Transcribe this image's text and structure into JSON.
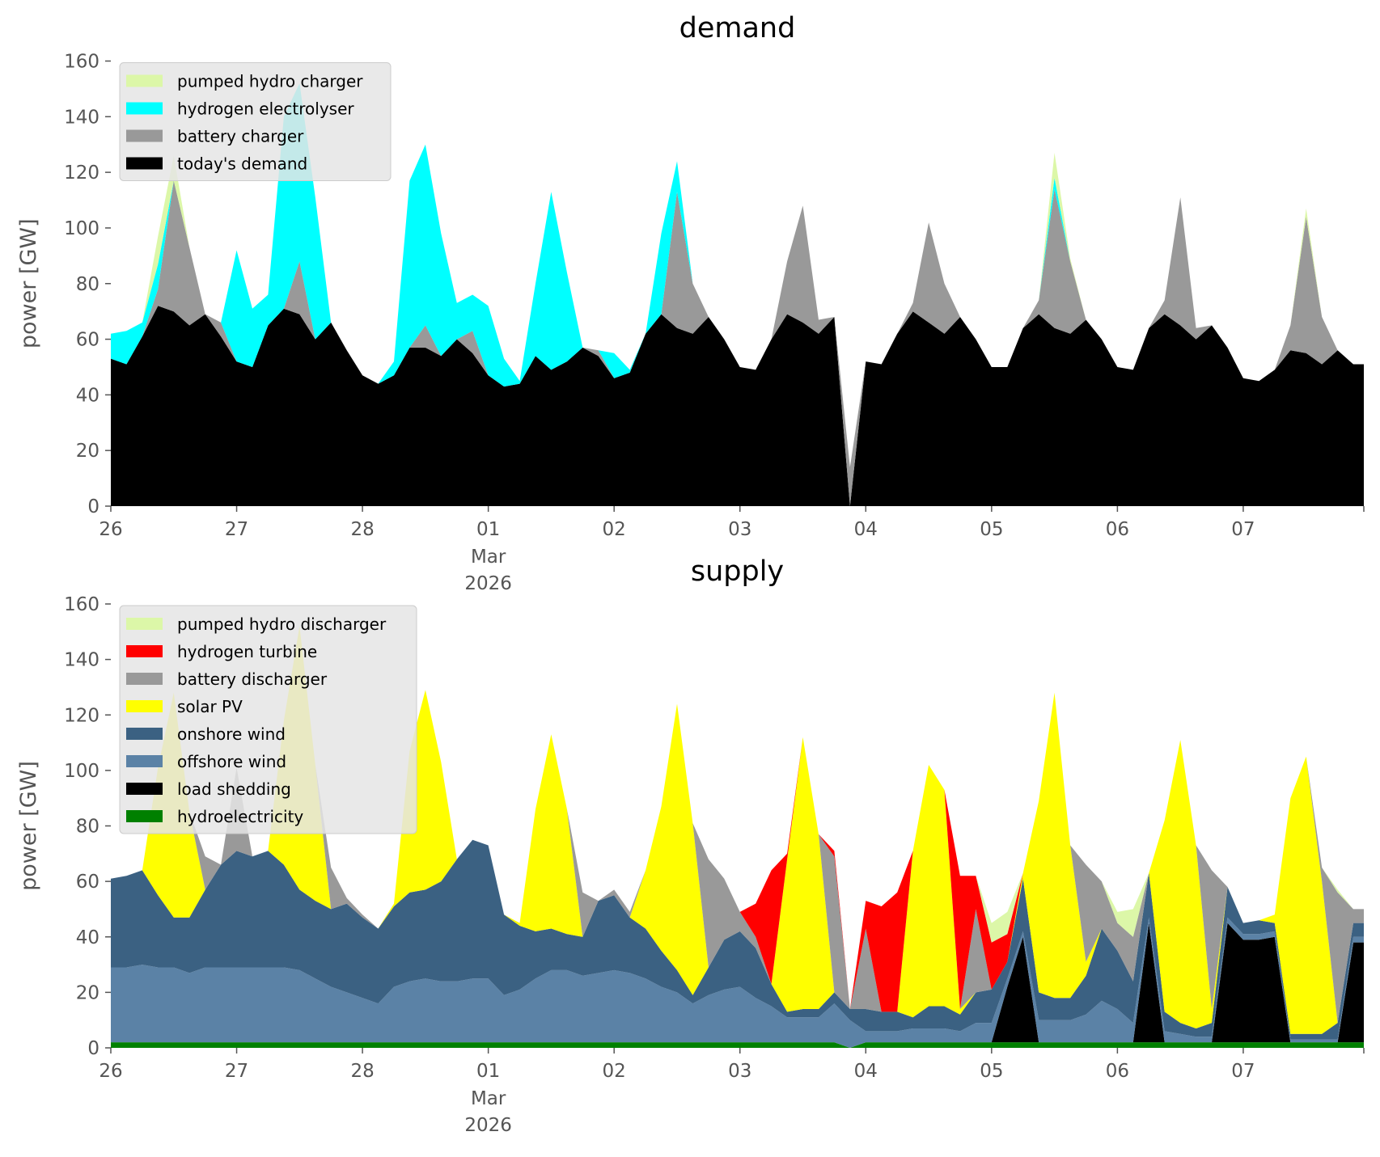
{
  "chart_data": [
    {
      "type": "area",
      "stacked": true,
      "title": "demand",
      "ylabel": "power [GW]",
      "xlabel": "",
      "ylim": [
        0,
        160
      ],
      "yticks": [
        "0",
        "20",
        "40",
        "60",
        "80",
        "100",
        "120",
        "140",
        "160"
      ],
      "x_start": "2026-02-26 00:00",
      "x_step_hours": 3,
      "x_range_hours": [
        0,
        239
      ],
      "xticks": [
        {
          "label": "26"
        },
        {
          "label": "27"
        },
        {
          "label": "28"
        },
        {
          "label": "01",
          "sub": [
            "Mar",
            "2026"
          ]
        },
        {
          "label": "02"
        },
        {
          "label": "03"
        },
        {
          "label": "04"
        },
        {
          "label": "05"
        },
        {
          "label": "06"
        },
        {
          "label": "07"
        }
      ],
      "legend_position": "upper-left",
      "series": [
        {
          "name": "today's demand",
          "color": "#000000",
          "values": [
            53,
            51,
            61,
            72,
            70,
            65,
            69,
            61,
            52,
            50,
            65,
            71,
            69,
            60,
            66,
            56,
            47,
            44,
            47,
            57,
            57,
            54,
            60,
            55,
            47,
            43,
            44,
            54,
            49,
            52,
            57,
            54,
            46,
            48,
            62,
            69,
            64,
            62,
            68,
            60,
            50,
            49,
            60,
            69,
            66,
            62,
            68,
            0,
            52,
            51,
            62,
            70,
            66,
            62,
            68,
            60,
            50,
            50,
            64,
            69,
            64,
            62,
            67,
            60,
            50,
            49,
            64,
            69,
            65,
            60,
            65,
            57,
            46,
            45,
            49,
            56,
            55,
            51,
            56,
            51
          ]
        },
        {
          "name": "battery charger",
          "color": "#999999",
          "values": [
            0,
            0,
            0,
            6,
            47,
            28,
            0,
            5,
            0,
            0,
            0,
            0,
            19,
            0,
            0,
            0,
            0,
            0,
            0,
            0,
            8,
            0,
            0,
            8,
            0,
            0,
            0,
            0,
            0,
            0,
            0,
            2,
            0,
            0,
            0,
            0,
            49,
            18,
            0,
            0,
            0,
            0,
            0,
            19,
            42,
            5,
            0,
            14,
            0,
            0,
            0,
            3,
            36,
            18,
            0,
            0,
            0,
            0,
            0,
            5,
            50,
            26,
            0,
            0,
            0,
            0,
            0,
            5,
            46,
            4,
            0,
            0,
            0,
            0,
            0,
            9,
            49,
            17,
            0,
            0
          ]
        },
        {
          "name": "hydrogen electrolyser",
          "color": "#00ffff",
          "values": [
            9,
            12,
            5,
            9,
            0,
            0,
            0,
            0,
            40,
            21,
            11,
            69,
            64,
            51,
            0,
            0,
            0,
            0,
            5,
            60,
            65,
            44,
            13,
            13,
            25,
            10,
            1,
            26,
            64,
            32,
            0,
            0,
            9,
            1,
            0,
            29,
            11,
            0,
            0,
            0,
            0,
            0,
            0,
            0,
            0,
            0,
            0,
            0,
            0,
            0,
            0,
            0,
            0,
            0,
            0,
            0,
            0,
            0,
            0,
            0,
            4,
            0,
            0,
            0,
            0,
            0,
            0,
            0,
            0,
            0,
            0,
            0,
            0,
            0,
            0,
            0,
            0,
            0,
            0,
            0
          ]
        },
        {
          "name": "pumped hydro charger",
          "color": "#dcf7a8",
          "values": [
            0,
            0,
            0,
            10,
            9,
            0,
            0,
            0,
            0,
            0,
            0,
            0,
            0,
            0,
            0,
            0,
            0,
            0,
            0,
            0,
            0,
            0,
            0,
            0,
            0,
            0,
            0,
            0,
            0,
            0,
            0,
            0,
            0,
            0,
            0,
            0,
            0,
            0,
            0,
            0,
            0,
            0,
            0,
            0,
            0,
            0,
            0,
            0,
            0,
            0,
            0,
            0,
            0,
            0,
            0,
            0,
            0,
            0,
            0,
            0,
            9,
            1,
            0,
            0,
            0,
            0,
            0,
            0,
            0,
            0,
            0,
            0,
            0,
            0,
            0,
            0,
            3,
            0,
            0,
            0
          ]
        }
      ]
    },
    {
      "type": "area",
      "stacked": true,
      "title": "supply",
      "ylabel": "power [GW]",
      "xlabel": "",
      "ylim": [
        0,
        160
      ],
      "yticks": [
        "0",
        "20",
        "40",
        "60",
        "80",
        "100",
        "120",
        "140",
        "160"
      ],
      "x_start": "2026-02-26 00:00",
      "x_step_hours": 3,
      "x_range_hours": [
        0,
        239
      ],
      "xticks": [
        {
          "label": "26"
        },
        {
          "label": "27"
        },
        {
          "label": "28"
        },
        {
          "label": "01",
          "sub": [
            "Mar",
            "2026"
          ]
        },
        {
          "label": "02"
        },
        {
          "label": "03"
        },
        {
          "label": "04"
        },
        {
          "label": "05"
        },
        {
          "label": "06"
        },
        {
          "label": "07"
        }
      ],
      "legend_position": "upper-left",
      "series": [
        {
          "name": "hydroelectricity",
          "color": "#008000",
          "values": [
            2,
            2,
            2,
            2,
            2,
            2,
            2,
            2,
            2,
            2,
            2,
            2,
            2,
            2,
            2,
            2,
            2,
            2,
            2,
            2,
            2,
            2,
            2,
            2,
            2,
            2,
            2,
            2,
            2,
            2,
            2,
            2,
            2,
            2,
            2,
            2,
            2,
            2,
            2,
            2,
            2,
            2,
            2,
            2,
            2,
            2,
            2,
            0,
            2,
            2,
            2,
            2,
            2,
            2,
            2,
            2,
            2,
            2,
            2,
            2,
            2,
            2,
            2,
            2,
            2,
            2,
            2,
            2,
            2,
            2,
            2,
            2,
            2,
            2,
            2,
            2,
            2,
            2,
            2,
            2
          ]
        },
        {
          "name": "load shedding",
          "color": "#000000",
          "values": [
            0,
            0,
            0,
            0,
            0,
            0,
            0,
            0,
            0,
            0,
            0,
            0,
            0,
            0,
            0,
            0,
            0,
            0,
            0,
            0,
            0,
            0,
            0,
            0,
            0,
            0,
            0,
            0,
            0,
            0,
            0,
            0,
            0,
            0,
            0,
            0,
            0,
            0,
            0,
            0,
            0,
            0,
            0,
            0,
            0,
            0,
            0,
            0,
            0,
            0,
            0,
            0,
            0,
            0,
            0,
            0,
            0,
            20,
            38,
            0,
            0,
            0,
            0,
            0,
            0,
            0,
            43,
            0,
            0,
            0,
            0,
            43,
            37,
            37,
            38,
            0,
            0,
            0,
            0,
            36
          ]
        },
        {
          "name": "offshore wind",
          "color": "#5b82a6",
          "values": [
            27,
            27,
            28,
            27,
            27,
            25,
            27,
            27,
            27,
            27,
            27,
            27,
            26,
            23,
            20,
            18,
            16,
            14,
            20,
            22,
            23,
            22,
            22,
            23,
            23,
            17,
            19,
            23,
            26,
            26,
            24,
            25,
            26,
            25,
            23,
            20,
            18,
            14,
            17,
            19,
            20,
            16,
            13,
            9,
            9,
            9,
            14,
            10,
            4,
            4,
            4,
            5,
            5,
            5,
            4,
            7,
            7,
            3,
            2,
            8,
            8,
            8,
            10,
            15,
            12,
            7,
            2,
            4,
            3,
            2,
            2,
            2,
            2,
            2,
            2,
            1,
            1,
            1,
            1,
            2
          ]
        },
        {
          "name": "onshore wind",
          "color": "#3b6182",
          "values": [
            32,
            33,
            34,
            26,
            18,
            20,
            28,
            37,
            42,
            40,
            42,
            37,
            29,
            28,
            28,
            32,
            29,
            27,
            29,
            32,
            32,
            36,
            44,
            50,
            48,
            29,
            23,
            17,
            15,
            13,
            14,
            26,
            27,
            20,
            18,
            13,
            8,
            3,
            10,
            18,
            20,
            18,
            8,
            2,
            3,
            3,
            4,
            4,
            8,
            7,
            7,
            4,
            8,
            8,
            6,
            11,
            12,
            6,
            19,
            10,
            8,
            8,
            14,
            26,
            21,
            15,
            16,
            7,
            4,
            3,
            5,
            11,
            4,
            5,
            3,
            2,
            2,
            2,
            6,
            5
          ]
        },
        {
          "name": "solar PV",
          "color": "#ffff00",
          "values": [
            0,
            0,
            0,
            46,
            81,
            38,
            0,
            0,
            0,
            0,
            0,
            52,
            95,
            49,
            0,
            0,
            0,
            0,
            1,
            51,
            72,
            43,
            0,
            0,
            0,
            0,
            1,
            44,
            70,
            45,
            0,
            0,
            0,
            0,
            21,
            52,
            96,
            62,
            0,
            0,
            0,
            0,
            0,
            55,
            98,
            63,
            0,
            0,
            0,
            0,
            0,
            60,
            87,
            78,
            2,
            0,
            0,
            0,
            2,
            69,
            110,
            55,
            5,
            0,
            0,
            0,
            0,
            69,
            102,
            66,
            5,
            0,
            0,
            0,
            3,
            85,
            100,
            55,
            0,
            0
          ]
        },
        {
          "name": "battery discharger",
          "color": "#999999",
          "values": [
            0,
            0,
            0,
            0,
            0,
            0,
            12,
            0,
            30,
            0,
            0,
            0,
            0,
            0,
            15,
            2,
            1,
            0,
            0,
            0,
            0,
            0,
            0,
            0,
            0,
            0,
            0,
            0,
            0,
            0,
            16,
            0,
            2,
            2,
            0,
            0,
            0,
            0,
            39,
            22,
            7,
            4,
            0,
            0,
            0,
            0,
            49,
            0,
            29,
            0,
            0,
            0,
            0,
            0,
            0,
            30,
            0,
            0,
            0,
            0,
            0,
            0,
            35,
            17,
            10,
            16,
            0,
            0,
            0,
            0,
            50,
            0,
            0,
            0,
            0,
            0,
            0,
            5,
            47,
            5
          ]
        },
        {
          "name": "hydrogen turbine",
          "color": "#ff0000",
          "values": [
            0,
            0,
            0,
            0,
            0,
            0,
            0,
            0,
            0,
            0,
            0,
            0,
            0,
            0,
            0,
            0,
            0,
            0,
            0,
            0,
            0,
            0,
            0,
            0,
            0,
            0,
            0,
            0,
            0,
            0,
            0,
            0,
            0,
            0,
            0,
            0,
            0,
            0,
            0,
            0,
            0,
            12,
            41,
            2,
            0,
            0,
            2,
            0,
            10,
            38,
            43,
            0,
            0,
            0,
            48,
            12,
            17,
            10,
            0,
            0,
            0,
            0,
            0,
            0,
            0,
            0,
            0,
            0,
            0,
            0,
            0,
            0,
            0,
            0,
            0,
            0,
            0,
            0,
            0,
            0
          ]
        },
        {
          "name": "pumped hydro discharger",
          "color": "#dcf7a8",
          "values": [
            0,
            0,
            0,
            0,
            0,
            0,
            0,
            0,
            0,
            0,
            0,
            0,
            0,
            0,
            0,
            0,
            0,
            0,
            0,
            0,
            0,
            0,
            0,
            0,
            0,
            0,
            0,
            0,
            0,
            0,
            0,
            0,
            0,
            0,
            0,
            0,
            0,
            0,
            0,
            0,
            0,
            0,
            0,
            0,
            0,
            0,
            0,
            0,
            0,
            0,
            0,
            0,
            0,
            0,
            0,
            0,
            7,
            8,
            0,
            0,
            0,
            0,
            0,
            0,
            4,
            10,
            0,
            0,
            0,
            0,
            0,
            0,
            0,
            0,
            0,
            0,
            0,
            0,
            1,
            0
          ]
        }
      ]
    }
  ]
}
